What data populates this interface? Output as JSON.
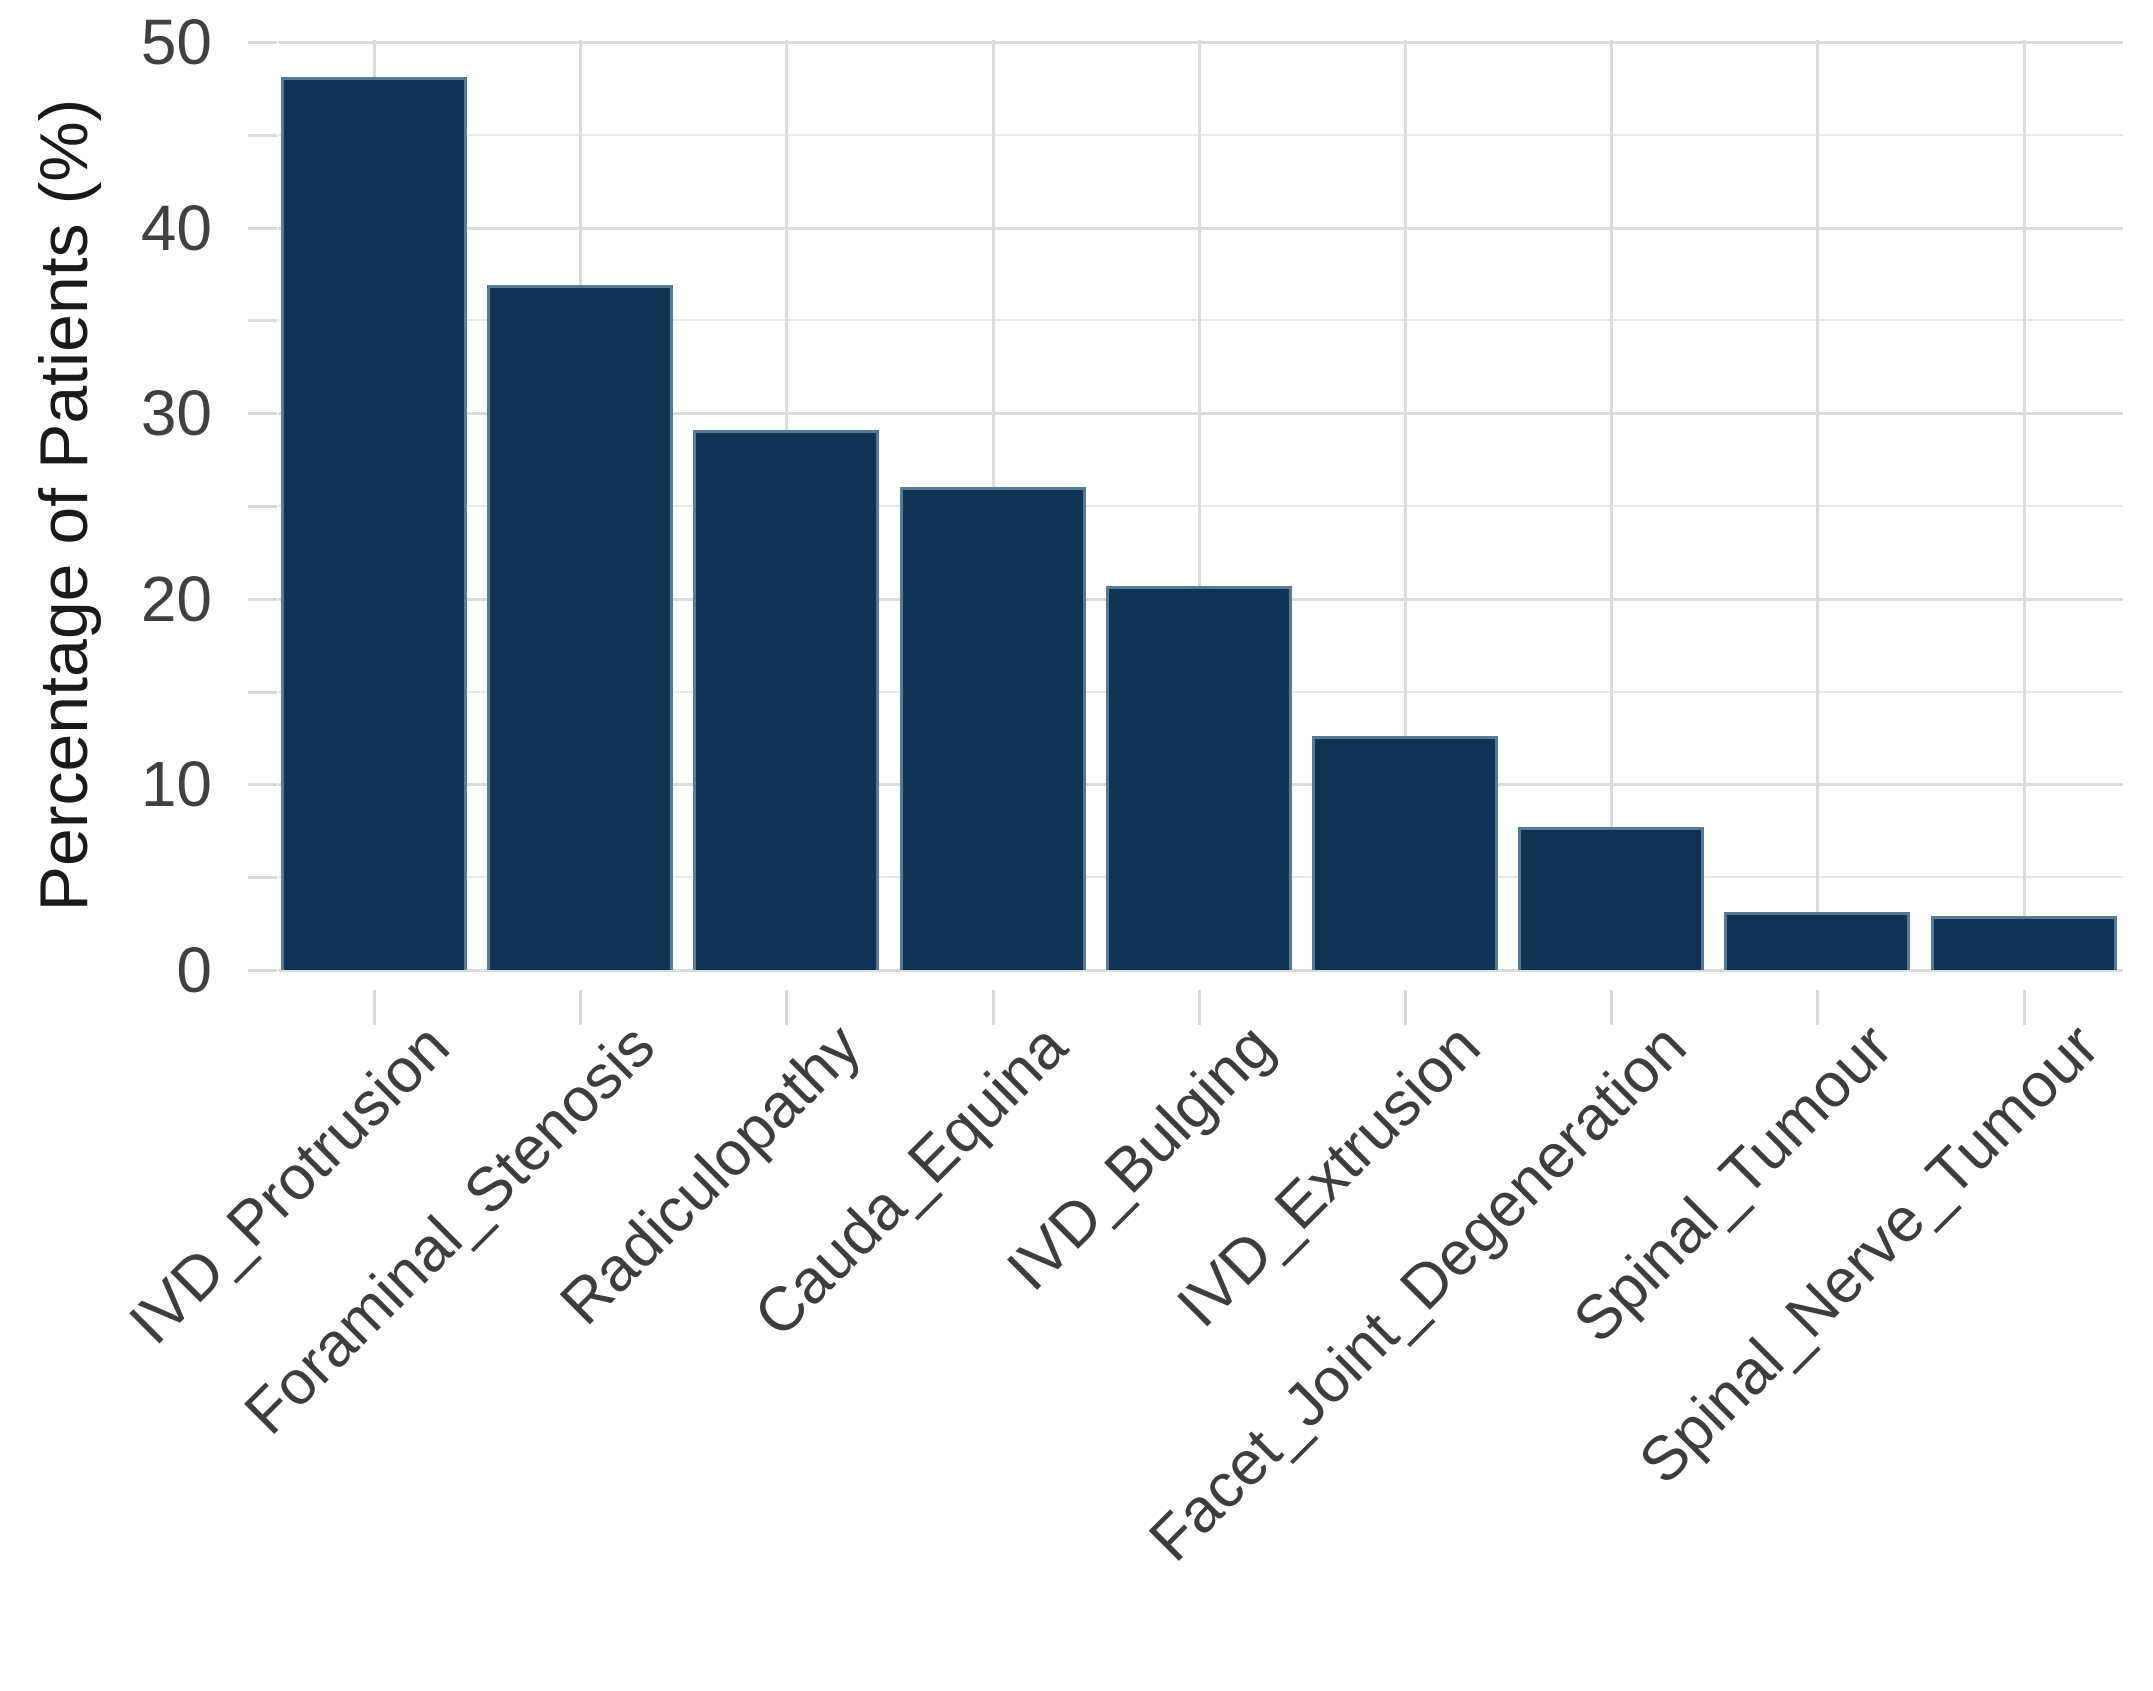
{
  "page": {
    "background": "#ffffff"
  },
  "chart_data": {
    "type": "bar",
    "title": "",
    "xlabel": "",
    "ylabel": "Percentage of Patients (%)",
    "categories": [
      "IVD_Protrusion",
      "Foraminal_Stenosis",
      "Radiculopathy",
      "Cauda_Equina",
      "IVD_Bulging",
      "IVD_Extrusion",
      "Facet_Joint_Degeneration",
      "Spinal_Tumour",
      "Spinal_Nerve_Tumour"
    ],
    "values": [
      48.1,
      36.9,
      29.1,
      26.0,
      20.7,
      12.6,
      7.7,
      3.1,
      2.9
    ],
    "ylim": [
      0,
      50
    ],
    "yticks": [
      0,
      10,
      20,
      30,
      40,
      50
    ],
    "minor_tick_step": 5,
    "grid": "major-and-minor",
    "legend": "none",
    "x_label_rotation_deg": 45,
    "colors": {
      "bar_fill": "#0e3355",
      "bar_outline": "#567b96",
      "grid_major": "#dcdcdc",
      "grid_minor": "#e7e7e7",
      "tick_mark": "#d9d9d9",
      "tick_label": "#404040",
      "axis_title": "#1a1a1a"
    }
  }
}
